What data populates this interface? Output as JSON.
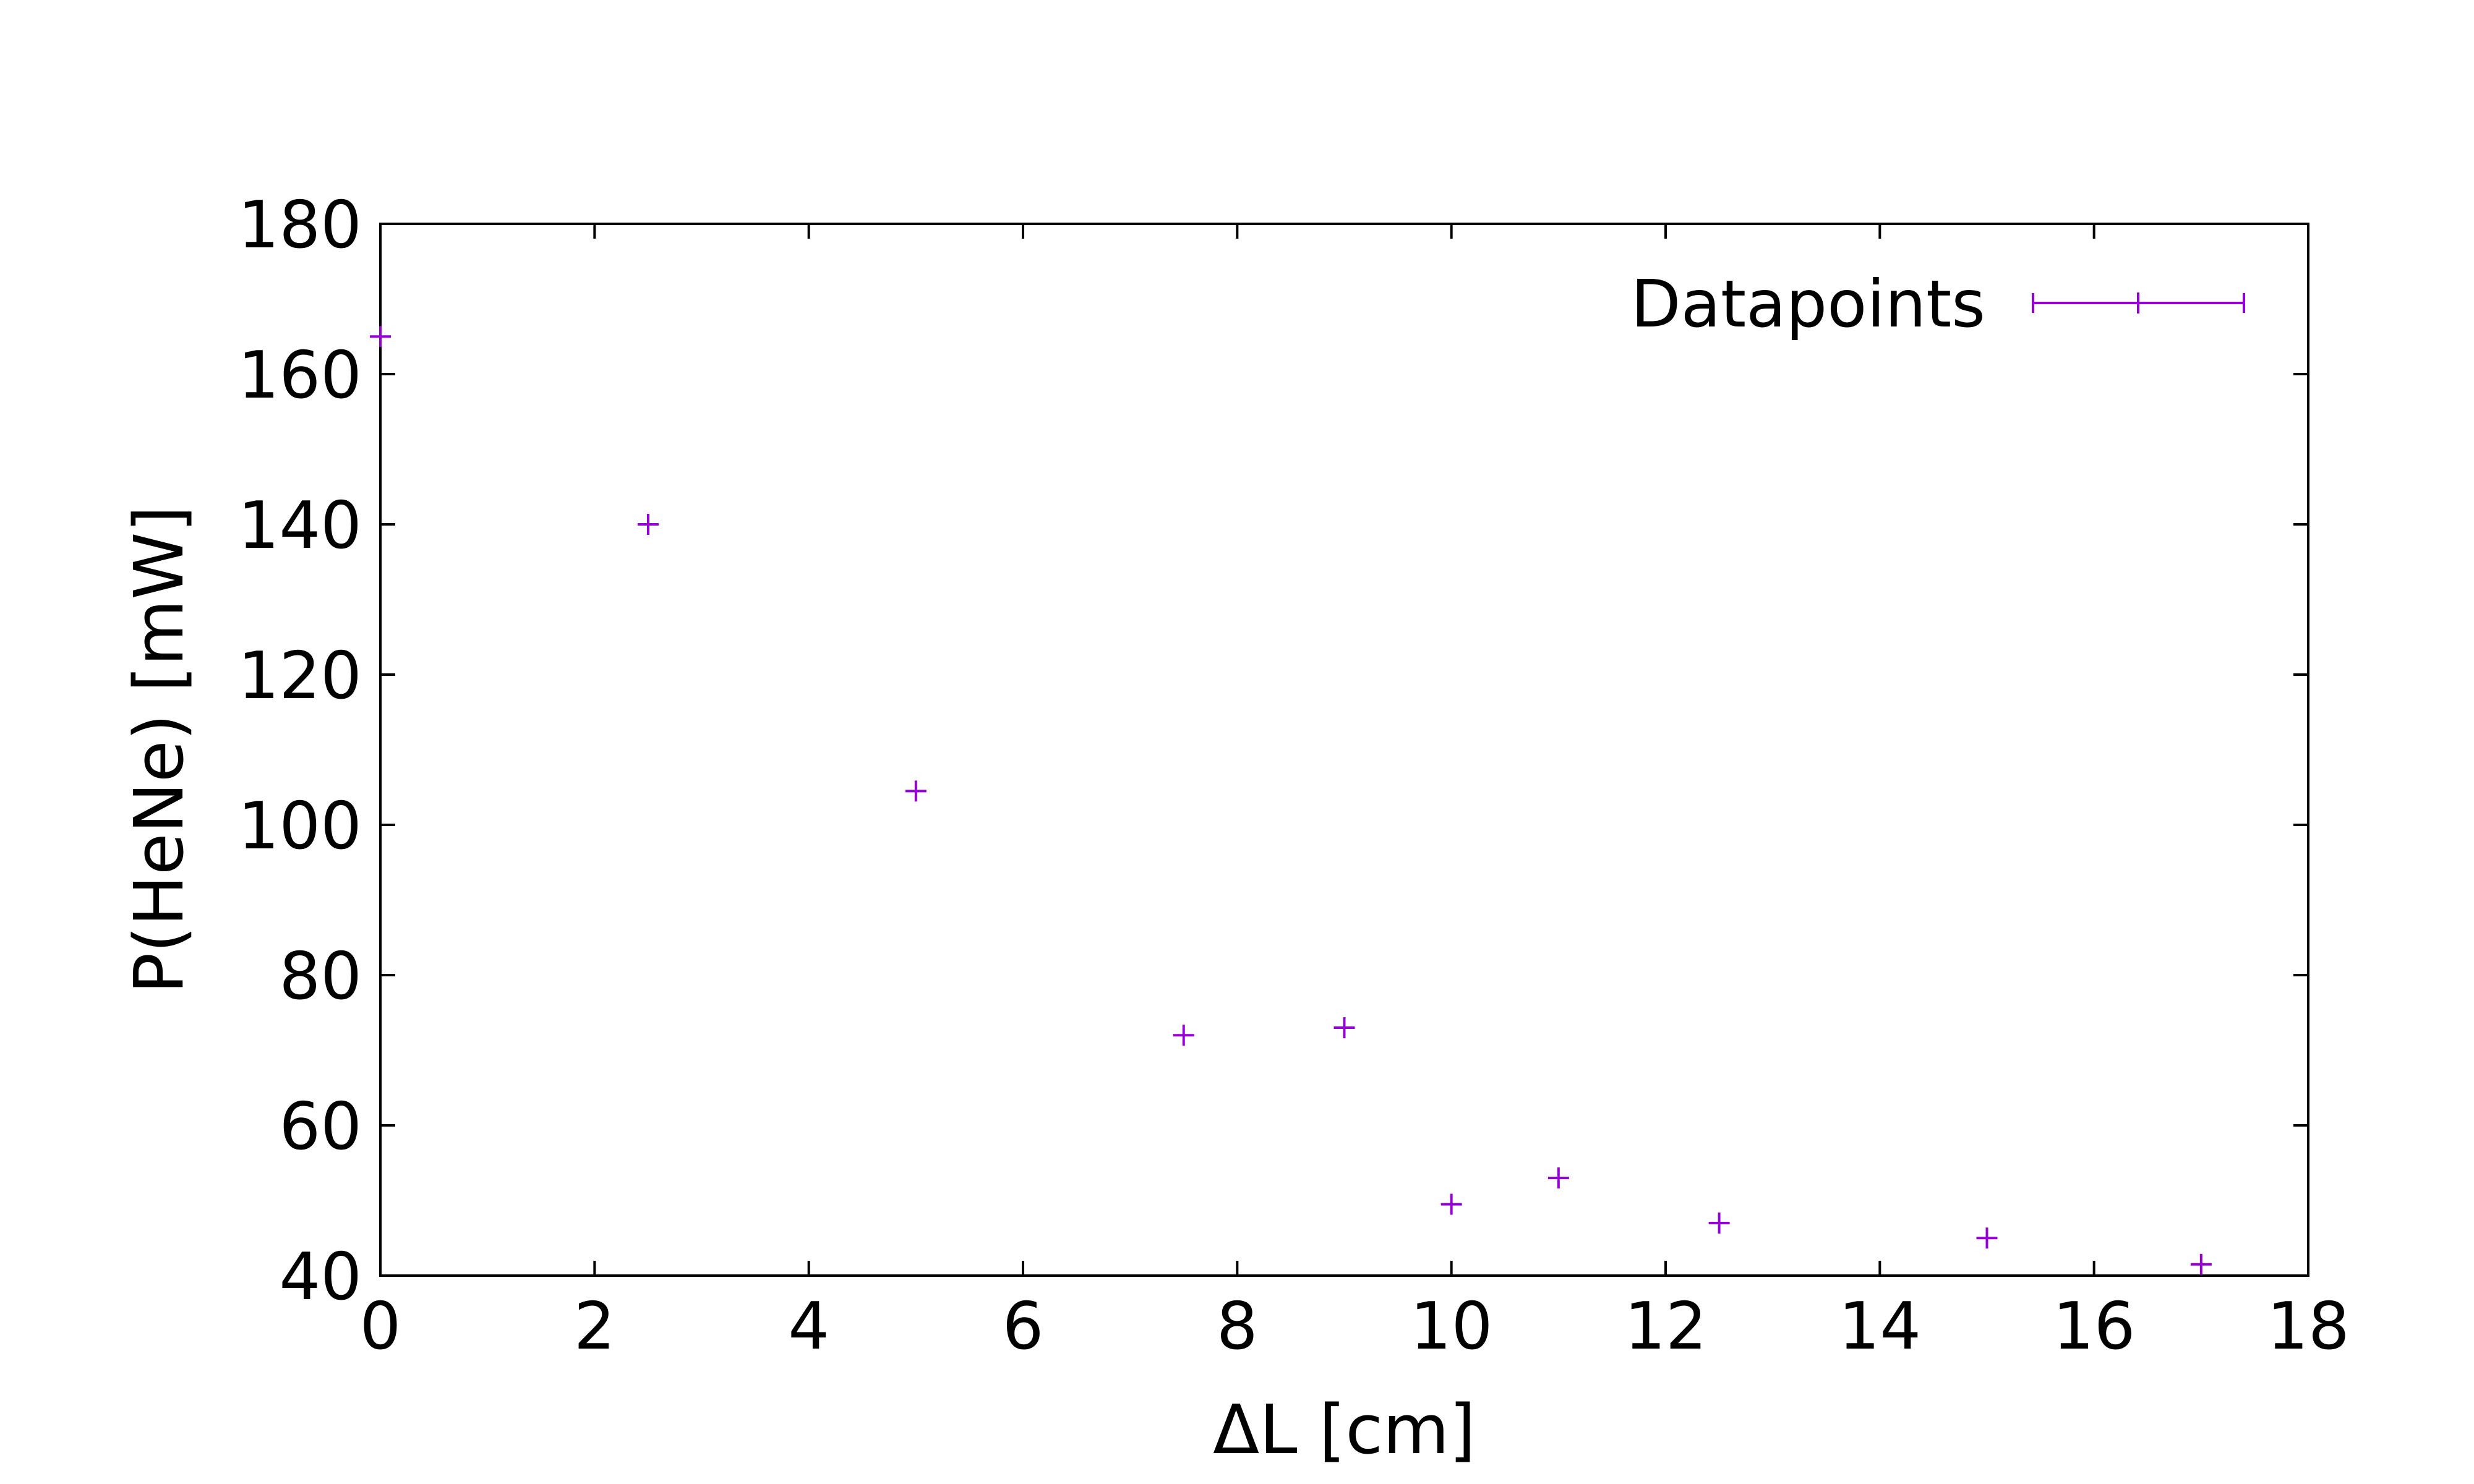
{
  "chart_data": {
    "type": "scatter",
    "xlabel": "ΔL [cm]",
    "ylabel": "P(HeNe) [mW]",
    "xlim": [
      0,
      18
    ],
    "ylim": [
      40,
      180
    ],
    "x_ticks": [
      0,
      2,
      4,
      6,
      8,
      10,
      12,
      14,
      16,
      18
    ],
    "y_ticks": [
      40,
      60,
      80,
      100,
      120,
      140,
      160,
      180
    ],
    "grid": false,
    "legend_position": "top-right",
    "series": [
      {
        "name": "Datapoints",
        "color": "#9400d3",
        "marker": "plus",
        "x": [
          0,
          2.5,
          5,
          7.5,
          9,
          10,
          11,
          12.5,
          15,
          17
        ],
        "y": [
          165,
          140,
          104.5,
          72,
          73,
          49.5,
          53,
          47,
          45,
          41.5
        ]
      }
    ]
  }
}
